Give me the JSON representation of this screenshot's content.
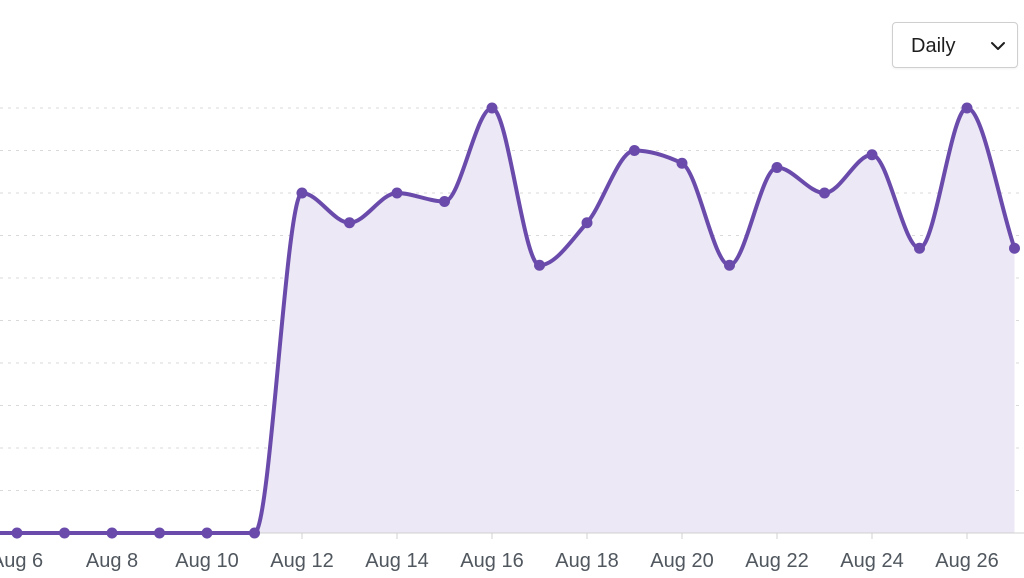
{
  "period_select": {
    "value": "Daily",
    "options": [
      "Daily"
    ]
  },
  "colors": {
    "line": "#6a4bab",
    "fill": "#ece8f5",
    "grid": "#d9d9d9",
    "axis": "#d0d0d0"
  },
  "chart_data": {
    "type": "area",
    "title": "",
    "xlabel": "",
    "ylabel": "",
    "ylim": [
      0,
      10
    ],
    "y_tick_labels_shown": false,
    "grid": "horizontal-dashed",
    "x": [
      "Aug 6",
      "Aug 7",
      "Aug 8",
      "Aug 9",
      "Aug 10",
      "Aug 11",
      "Aug 12",
      "Aug 13",
      "Aug 14",
      "Aug 15",
      "Aug 16",
      "Aug 17",
      "Aug 18",
      "Aug 19",
      "Aug 20",
      "Aug 21",
      "Aug 22",
      "Aug 23",
      "Aug 24",
      "Aug 25",
      "Aug 26",
      "Aug 27"
    ],
    "x_tick_labels": [
      "Aug 6",
      "Aug 8",
      "Aug 10",
      "Aug 12",
      "Aug 14",
      "Aug 16",
      "Aug 18",
      "Aug 20",
      "Aug 22",
      "Aug 24",
      "Aug 26"
    ],
    "series": [
      {
        "values": [
          0,
          0,
          0,
          0,
          0,
          0,
          8,
          7.3,
          8,
          7.8,
          10,
          6.3,
          7.3,
          9,
          8.7,
          6.3,
          8.6,
          8,
          8.9,
          6.7,
          10,
          6.7
        ]
      }
    ]
  }
}
